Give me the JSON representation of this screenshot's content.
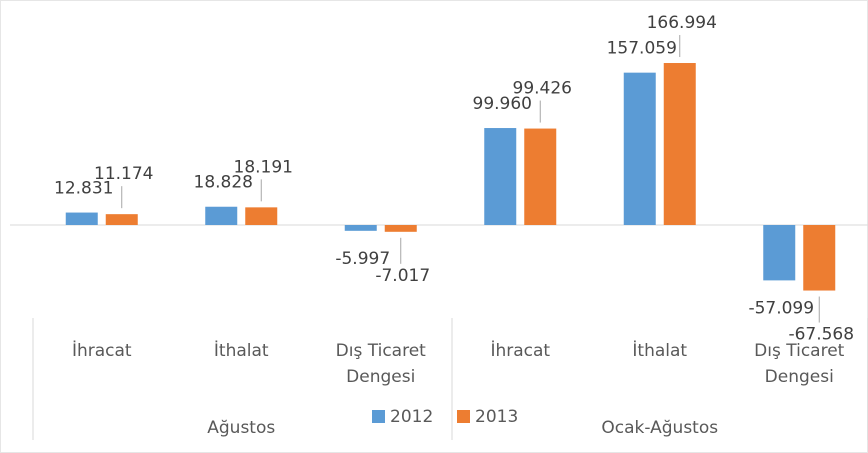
{
  "chart_data": {
    "type": "bar",
    "categories": [
      "İhracat",
      "İthalat",
      "Dış Ticaret Dengesi",
      "İhracat",
      "İthalat",
      "Dış Ticaret Dengesi"
    ],
    "category_groups": [
      "Ağustos",
      "Ocak-Ağustos"
    ],
    "series": [
      {
        "name": "2012",
        "color": "#5b9bd5",
        "values": [
          12.831,
          18.828,
          -5.997,
          99.96,
          157.059,
          -57.099
        ],
        "value_labels": [
          "12.831",
          "18.828",
          "-5.997",
          "99.960",
          "157.059",
          "-57.099"
        ]
      },
      {
        "name": "2013",
        "color": "#ed7d31",
        "values": [
          11.174,
          18.191,
          -7.017,
          99.426,
          166.994,
          -67.568
        ],
        "value_labels": [
          "11.174",
          "18.191",
          "-7.017",
          "99.426",
          "166.994",
          "-67.568"
        ]
      }
    ],
    "legend": "bottom"
  }
}
